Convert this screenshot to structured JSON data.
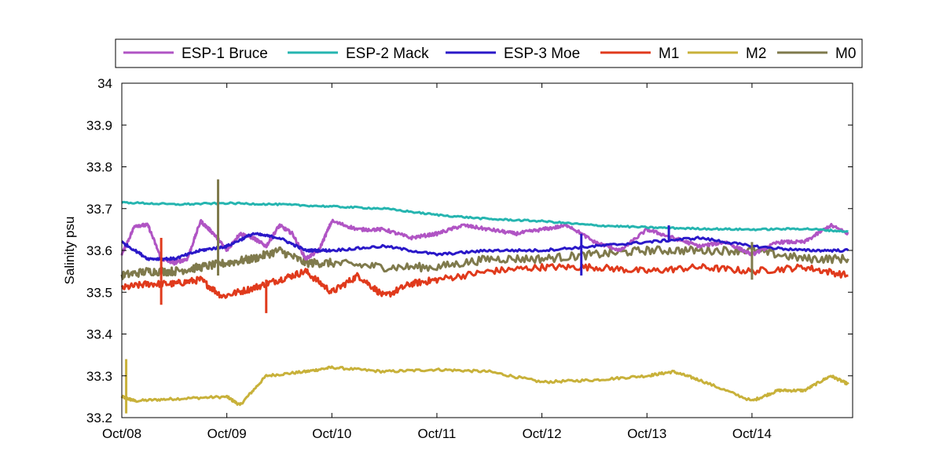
{
  "chart_data": {
    "type": "line",
    "ylabel": "Salinity psu",
    "xlabel": "",
    "title": "",
    "x_ticks": [
      "Oct/08",
      "Oct/09",
      "Oct/10",
      "Oct/11",
      "Oct/12",
      "Oct/13",
      "Oct/14"
    ],
    "y_ticks": [
      "33.2",
      "33.3",
      "33.4",
      "33.5",
      "33.6",
      "33.7",
      "33.8",
      "33.9",
      "34"
    ],
    "xlim": [
      "Oct/08",
      "Oct/14 23:00"
    ],
    "ylim": [
      33.2,
      34.0
    ],
    "grid": false,
    "legend_placement": "top, outside axes, single row",
    "series": [
      {
        "name": "ESP-1 Bruce",
        "color": "#b054c4",
        "x": [
          "Oct/08 00:00",
          "Oct/08 03:00",
          "Oct/08 06:00",
          "Oct/08 09:00",
          "Oct/08 12:00",
          "Oct/08 15:00",
          "Oct/08 18:00",
          "Oct/08 21:00",
          "Oct/09 00:00",
          "Oct/09 03:00",
          "Oct/09 06:00",
          "Oct/09 09:00",
          "Oct/09 12:00",
          "Oct/09 15:00",
          "Oct/09 18:00",
          "Oct/09 21:00",
          "Oct/10 00:00",
          "Oct/10 06:00",
          "Oct/10 12:00",
          "Oct/10 18:00",
          "Oct/11 00:00",
          "Oct/11 06:00",
          "Oct/11 12:00",
          "Oct/11 18:00",
          "Oct/12 00:00",
          "Oct/12 06:00",
          "Oct/12 12:00",
          "Oct/12 18:00",
          "Oct/13 00:00",
          "Oct/13 06:00",
          "Oct/13 12:00",
          "Oct/13 18:00",
          "Oct/14 00:00",
          "Oct/14 06:00",
          "Oct/14 12:00",
          "Oct/14 18:00",
          "Oct/14 22:00"
        ],
        "values": [
          33.59,
          33.66,
          33.66,
          33.58,
          33.57,
          33.58,
          33.67,
          33.64,
          33.6,
          33.64,
          33.63,
          33.61,
          33.66,
          33.64,
          33.58,
          33.6,
          33.67,
          33.65,
          33.65,
          33.63,
          33.64,
          33.66,
          33.65,
          33.64,
          33.65,
          33.66,
          33.62,
          33.6,
          33.65,
          33.63,
          33.61,
          33.62,
          33.59,
          33.62,
          33.62,
          33.66,
          33.64
        ]
      },
      {
        "name": "ESP-2 Mack",
        "color": "#26b5b0",
        "x": [
          "Oct/08 00:00",
          "Oct/08 12:00",
          "Oct/09 00:00",
          "Oct/09 12:00",
          "Oct/10 00:00",
          "Oct/10 12:00",
          "Oct/11 00:00",
          "Oct/11 12:00",
          "Oct/12 00:00",
          "Oct/12 12:00",
          "Oct/13 00:00",
          "Oct/13 12:00",
          "Oct/14 00:00",
          "Oct/14 12:00",
          "Oct/14 22:00"
        ],
        "values": [
          33.715,
          33.71,
          33.713,
          33.71,
          33.705,
          33.7,
          33.685,
          33.675,
          33.67,
          33.66,
          33.655,
          33.652,
          33.65,
          33.652,
          33.645
        ]
      },
      {
        "name": "ESP-3 Moe",
        "color": "#2a18c8",
        "x": [
          "Oct/08 00:00",
          "Oct/08 06:00",
          "Oct/08 12:00",
          "Oct/08 18:00",
          "Oct/09 00:00",
          "Oct/09 06:00",
          "Oct/09 12:00",
          "Oct/09 18:00",
          "Oct/10 00:00",
          "Oct/10 12:00",
          "Oct/11 00:00",
          "Oct/11 12:00",
          "Oct/12 00:00",
          "Oct/12 12:00",
          "Oct/13 00:00",
          "Oct/13 12:00",
          "Oct/14 00:00",
          "Oct/14 12:00",
          "Oct/14 22:00"
        ],
        "values": [
          33.62,
          33.58,
          33.58,
          33.6,
          33.61,
          33.64,
          33.63,
          33.6,
          33.6,
          33.61,
          33.59,
          33.6,
          33.6,
          33.61,
          33.62,
          33.63,
          33.61,
          33.6,
          33.6
        ]
      },
      {
        "name": "M1",
        "color": "#e03a1c",
        "x": [
          "Oct/08 00:00",
          "Oct/08 06:00",
          "Oct/08 12:00",
          "Oct/08 18:00",
          "Oct/08 23:00",
          "Oct/09 06:00",
          "Oct/09 12:00",
          "Oct/09 18:00",
          "Oct/10 00:00",
          "Oct/10 06:00",
          "Oct/10 12:00",
          "Oct/10 18:00",
          "Oct/11 00:00",
          "Oct/11 12:00",
          "Oct/12 00:00",
          "Oct/12 12:00",
          "Oct/13 00:00",
          "Oct/13 12:00",
          "Oct/14 00:00",
          "Oct/14 12:00",
          "Oct/14 22:00"
        ],
        "values": [
          33.51,
          33.52,
          33.52,
          33.53,
          33.49,
          33.51,
          33.53,
          33.55,
          33.5,
          33.54,
          33.49,
          33.52,
          33.53,
          33.55,
          33.56,
          33.56,
          33.55,
          33.56,
          33.55,
          33.56,
          33.54
        ]
      },
      {
        "name": "M2",
        "color": "#c8b13a",
        "x": [
          "Oct/08 00:00",
          "Oct/08 03:00",
          "Oct/08 12:00",
          "Oct/09 00:00",
          "Oct/09 03:00",
          "Oct/09 09:00",
          "Oct/09 18:00",
          "Oct/10 00:00",
          "Oct/10 12:00",
          "Oct/11 00:00",
          "Oct/11 12:00",
          "Oct/12 00:00",
          "Oct/12 12:00",
          "Oct/13 00:00",
          "Oct/13 06:00",
          "Oct/13 12:00",
          "Oct/14 00:00",
          "Oct/14 06:00",
          "Oct/14 12:00",
          "Oct/14 18:00",
          "Oct/14 22:00"
        ],
        "values": [
          33.25,
          33.24,
          33.245,
          33.25,
          33.23,
          33.3,
          33.31,
          33.32,
          33.31,
          33.315,
          33.31,
          33.285,
          33.29,
          33.3,
          33.31,
          33.29,
          33.24,
          33.265,
          33.265,
          33.3,
          33.28
        ]
      },
      {
        "name": "M0",
        "color": "#7f7a4c",
        "x": [
          "Oct/08 00:00",
          "Oct/08 06:00",
          "Oct/08 12:00",
          "Oct/08 18:00",
          "Oct/09 00:00",
          "Oct/09 06:00",
          "Oct/09 12:00",
          "Oct/09 18:00",
          "Oct/10 00:00",
          "Oct/10 12:00",
          "Oct/11 00:00",
          "Oct/11 12:00",
          "Oct/12 00:00",
          "Oct/12 12:00",
          "Oct/13 00:00",
          "Oct/13 12:00",
          "Oct/14 00:00",
          "Oct/14 12:00",
          "Oct/14 22:00"
        ],
        "values": [
          33.54,
          33.55,
          33.55,
          33.56,
          33.57,
          33.58,
          33.6,
          33.57,
          33.57,
          33.56,
          33.56,
          33.58,
          33.58,
          33.59,
          33.6,
          33.6,
          33.6,
          33.58,
          33.58
        ]
      }
    ],
    "spikes": [
      {
        "series": "M0",
        "x": "Oct/08 22:00",
        "min": 33.54,
        "max": 33.77
      },
      {
        "series": "M2",
        "x": "Oct/08 01:00",
        "min": 33.21,
        "max": 33.34
      },
      {
        "series": "M1",
        "x": "Oct/08 09:00",
        "min": 33.47,
        "max": 33.63
      },
      {
        "series": "M1",
        "x": "Oct/09 09:00",
        "min": 33.45,
        "max": 33.53
      },
      {
        "series": "ESP-3 Moe",
        "x": "Oct/12 09:00",
        "min": 33.54,
        "max": 33.64
      },
      {
        "series": "ESP-3 Moe",
        "x": "Oct/13 05:00",
        "min": 33.62,
        "max": 33.66
      },
      {
        "series": "M0",
        "x": "Oct/14 00:00",
        "min": 33.53,
        "max": 33.62
      }
    ]
  }
}
